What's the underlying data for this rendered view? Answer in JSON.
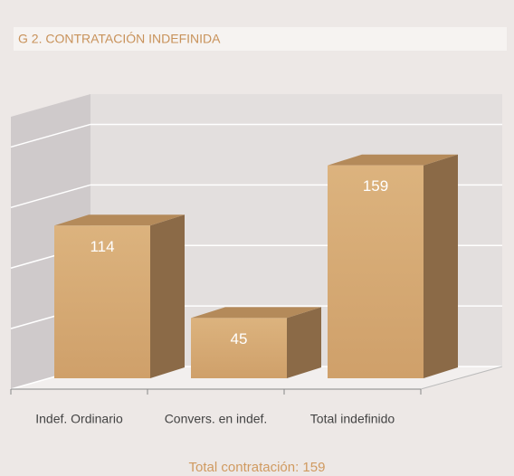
{
  "chart_data": {
    "type": "bar3d",
    "title": "G 2. CONTRATACIÓN INDEFINIDA",
    "categories": [
      "Indef. Ordinario",
      "Convers. en indef.",
      "Total indefinido"
    ],
    "values": [
      114,
      45,
      159
    ],
    "color": "#d4a872",
    "ylim": [
      0,
      180
    ],
    "yticks": [
      0,
      40,
      80,
      120,
      160
    ],
    "grid": true,
    "annotation": "Total contratación: 159"
  }
}
